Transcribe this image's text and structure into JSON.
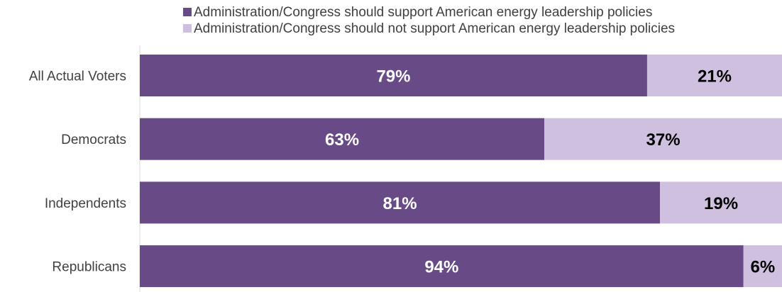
{
  "chart_data": {
    "type": "bar",
    "orientation": "horizontal",
    "stacked": true,
    "percent_stacked": true,
    "categories": [
      "All Actual Voters",
      "Democrats",
      "Independents",
      "Republicans"
    ],
    "series": [
      {
        "name": "Administration/Congress should support American energy leadership policies",
        "color": "#674a86",
        "label_color": "#ffffff",
        "values": [
          79,
          63,
          81,
          94
        ],
        "labels": [
          "79%",
          "63%",
          "81%",
          "94%"
        ]
      },
      {
        "name": "Administration/Congress should not support American energy leadership policies",
        "color": "#cfc0df",
        "label_color": "#000000",
        "values": [
          21,
          37,
          19,
          6
        ],
        "labels": [
          "21%",
          "37%",
          "19%",
          "6%"
        ]
      }
    ],
    "xlim": [
      0,
      100
    ],
    "grid": false,
    "legend_position": "top"
  }
}
